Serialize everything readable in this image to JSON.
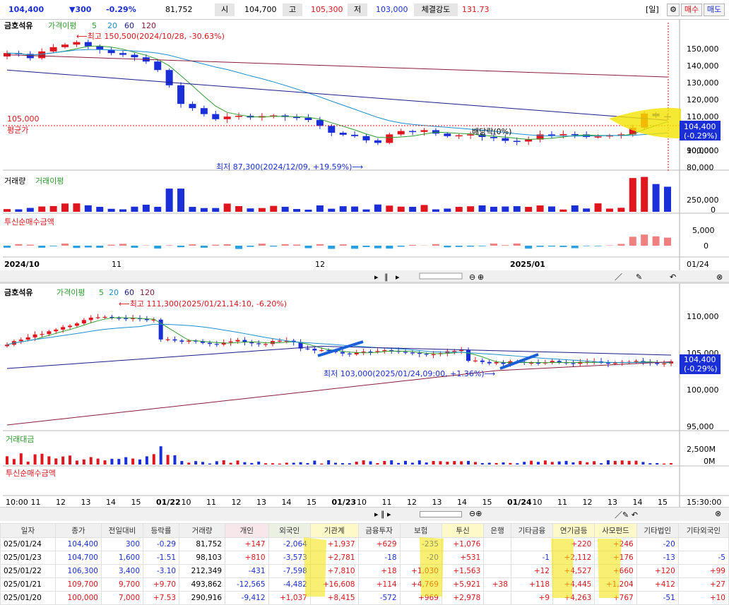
{
  "top": {
    "price": "104,400",
    "change": "▼300",
    "rate": "-0.29%",
    "volume": "81,752",
    "open_label": "시",
    "open": "104,700",
    "high_label": "고",
    "high": "105,300",
    "low_label": "저",
    "low": "103,000",
    "strength_label": "체결강도",
    "strength": "131.73",
    "period": "[일]",
    "buy": "매수",
    "sell": "매도"
  },
  "daily_chart": {
    "legend_name": "금호석유",
    "legend_ma": "가격이평",
    "ma_periods": [
      "5",
      "20",
      "60",
      "120"
    ],
    "high_note": "⟵최고 150,500(2024/10/28, -30.63%)",
    "low_note": "최저 87,300(2024/12/09, +19.59%)⟶",
    "avg_price": "105,000",
    "avg_label": "평균가",
    "dividend": "배당락(0%)",
    "price_axis": [
      "150,000",
      "140,000",
      "130,000",
      "120,000",
      "110,000",
      "100,000",
      "90,000",
      "80,000"
    ],
    "current": "104,400",
    "current_rate": "(-0.29%)",
    "vol_legend": "거래량",
    "vol_ma": "거래이평",
    "vol_axis": [
      "250,000",
      "0"
    ],
    "inst_legend": "투신순매수금액",
    "inst_axis": [
      "5,000",
      "0"
    ],
    "date_axis": [
      "2024/10",
      "11",
      "12",
      "2025/01",
      "01/24"
    ]
  },
  "minute_chart": {
    "legend_name": "금호석유",
    "legend_ma": "가격이평",
    "ma_periods": [
      "5",
      "20",
      "60",
      "120"
    ],
    "high_note": "⟵최고 111,300(2025/01/21,14:10, -6.20%)",
    "low_note": "최저 103,000(2025/01/24,09:00, +1.36%)⟶",
    "price_axis": [
      "110,000",
      "105,000",
      "100,000",
      "95,000"
    ],
    "current": "104,400",
    "current_rate": "(-0.29%)",
    "amount_legend": "거래대금",
    "amount_axis": [
      "2,500M",
      "0M"
    ],
    "inst_legend": "투신순매수금액",
    "time_axis": [
      "10:00",
      "11",
      "12",
      "13",
      "14",
      "15",
      "01/22",
      "10",
      "11",
      "12",
      "13",
      "14",
      "15",
      "01/23",
      "10",
      "11",
      "12",
      "13",
      "14",
      "15",
      "01/24",
      "10",
      "11",
      "12",
      "13",
      "14",
      "15"
    ],
    "clock": "15:30:00"
  },
  "icons": [
    "search-icon",
    "gear-icon",
    "pen-icon",
    "line-icon",
    "undo-icon",
    "close-icon",
    "zoom-in-icon",
    "zoom-out-icon",
    "play-icon",
    "pause-icon",
    "arrow-icon"
  ],
  "colors": {
    "up": "#e0151d",
    "down": "#1a2fd8",
    "ma5": "#2f9e2f",
    "ma20": "#1b8fd0",
    "ma60": "#1c1c8a",
    "ma120": "#8a1c3c",
    "highlight": "#f4e400"
  },
  "table": {
    "headers": [
      "일자",
      "종가",
      "전일대비",
      "등락률",
      "거래량",
      "개인",
      "외국인",
      "기관계",
      "금융투자",
      "보험",
      "투신",
      "은행",
      "기타금융",
      "연기금등",
      "사모펀드",
      "기타법인",
      "기타외국인"
    ],
    "rows": [
      [
        "025/01/24",
        "104,400",
        "300",
        "-0.29",
        "81,752",
        "+147",
        "-2,064",
        "+1,937",
        "+629",
        "-235",
        "+1,076",
        "",
        "",
        "+220",
        "+246",
        "-20",
        ""
      ],
      [
        "025/01/23",
        "104,700",
        "1,600",
        "-1.51",
        "98,103",
        "+810",
        "-3,573",
        "+2,781",
        "-18",
        "-20",
        "+531",
        "",
        "-1",
        "+2,112",
        "+176",
        "-13",
        "-5"
      ],
      [
        "025/01/22",
        "106,300",
        "3,400",
        "-3.10",
        "212,349",
        "-431",
        "-7,598",
        "+7,810",
        "+18",
        "+1,030",
        "+1,563",
        "",
        "+12",
        "+4,527",
        "+660",
        "+120",
        "+99"
      ],
      [
        "025/01/21",
        "109,700",
        "9,700",
        "+9.70",
        "493,862",
        "-12,565",
        "-4,482",
        "+16,608",
        "+114",
        "+4,769",
        "+5,921",
        "+38",
        "+118",
        "+4,445",
        "+1,204",
        "+412",
        "+27"
      ],
      [
        "025/01/20",
        "100,000",
        "7,000",
        "+7.53",
        "290,916",
        "-9,412",
        "+1,037",
        "+8,415",
        "-572",
        "+969",
        "+2,978",
        "",
        "+9",
        "+4,263",
        "+767",
        "-51",
        "+10"
      ]
    ]
  }
}
